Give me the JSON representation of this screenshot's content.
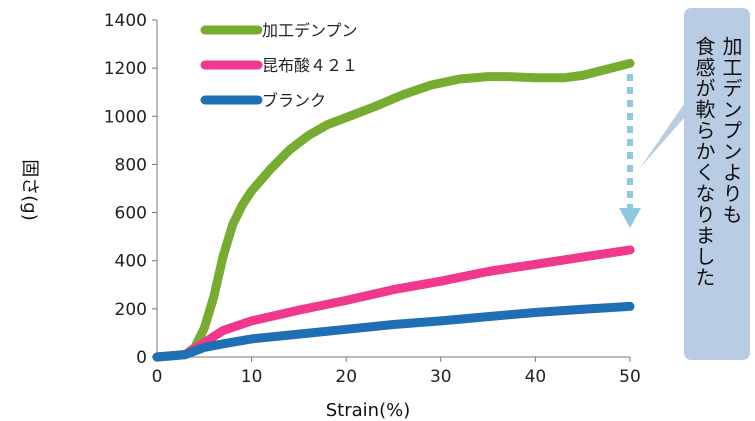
{
  "chart_data": {
    "type": "line",
    "title": "",
    "xlabel": "Strain(%)",
    "ylabel": "固さ(g)",
    "xlim": [
      0,
      50
    ],
    "ylim": [
      0,
      1400
    ],
    "xticks": [
      0,
      10,
      20,
      30,
      40,
      50
    ],
    "yticks": [
      0,
      200,
      400,
      600,
      800,
      1000,
      1200,
      1400
    ],
    "grid": false,
    "legend_position": "top-left",
    "series": [
      {
        "name": "加工デンプン",
        "color": "#77ac30",
        "x": [
          0,
          3,
          4,
          5,
          6,
          7,
          8,
          9,
          10,
          12,
          14,
          16,
          18,
          20,
          23,
          26,
          29,
          32,
          35,
          37,
          40,
          43,
          45,
          47,
          50
        ],
        "y": [
          0,
          10,
          40,
          120,
          250,
          420,
          550,
          630,
          690,
          780,
          860,
          920,
          965,
          995,
          1040,
          1090,
          1130,
          1155,
          1165,
          1165,
          1160,
          1160,
          1170,
          1190,
          1220
        ]
      },
      {
        "name": "昆布酸４２１",
        "color": "#f0388c",
        "x": [
          0,
          3,
          5,
          7,
          10,
          15,
          20,
          25,
          30,
          35,
          40,
          45,
          50
        ],
        "y": [
          0,
          10,
          60,
          110,
          150,
          195,
          235,
          280,
          315,
          355,
          385,
          415,
          445
        ]
      },
      {
        "name": "ブランク",
        "color": "#1f6fb4",
        "x": [
          0,
          3,
          5,
          7,
          10,
          15,
          20,
          25,
          30,
          35,
          40,
          45,
          50
        ],
        "y": [
          0,
          10,
          40,
          55,
          75,
          95,
          115,
          135,
          150,
          168,
          185,
          198,
          210
        ]
      }
    ],
    "annotation": {
      "text": "加工デンプンよりも食感が軟らかくなりました",
      "column_1": "加工デンプンよりも",
      "column_2": "食感が軟らかくなりました",
      "box_color": "#b8cde4",
      "arrow_color": "#8ec9e2"
    }
  }
}
